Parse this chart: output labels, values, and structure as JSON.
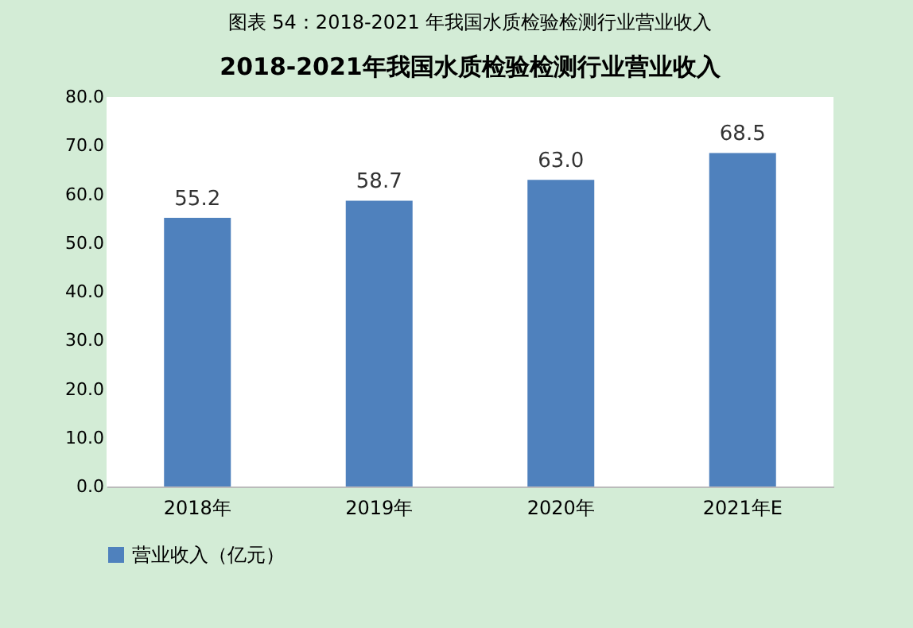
{
  "chart_data": {
    "type": "bar",
    "title": "图表 54：2018-2021 年我国水质检验检测行业营业收入",
    "subtitle": "2018-2021年我国水质检验检测行业营业收入",
    "categories": [
      "2018年",
      "2019年",
      "2020年",
      "2021年E"
    ],
    "series": [
      {
        "name": "营业收入（亿元）",
        "color": "#4f81bd",
        "values": [
          55.2,
          58.7,
          63.0,
          68.5
        ]
      }
    ],
    "ylim": [
      0,
      80
    ],
    "yticks": [
      {
        "value": 0,
        "label": "0.0"
      },
      {
        "value": 10,
        "label": "10.0"
      },
      {
        "value": 20,
        "label": "20.0"
      },
      {
        "value": 30,
        "label": "30.0"
      },
      {
        "value": 40,
        "label": "40.0"
      },
      {
        "value": 50,
        "label": "50.0"
      },
      {
        "value": 60,
        "label": "60.0"
      },
      {
        "value": 70,
        "label": "70.0"
      },
      {
        "value": 80,
        "label": "80.0"
      }
    ],
    "value_labels": [
      "55.2",
      "58.7",
      "63.0",
      "68.5"
    ],
    "grid": false,
    "legend": "bottom"
  }
}
